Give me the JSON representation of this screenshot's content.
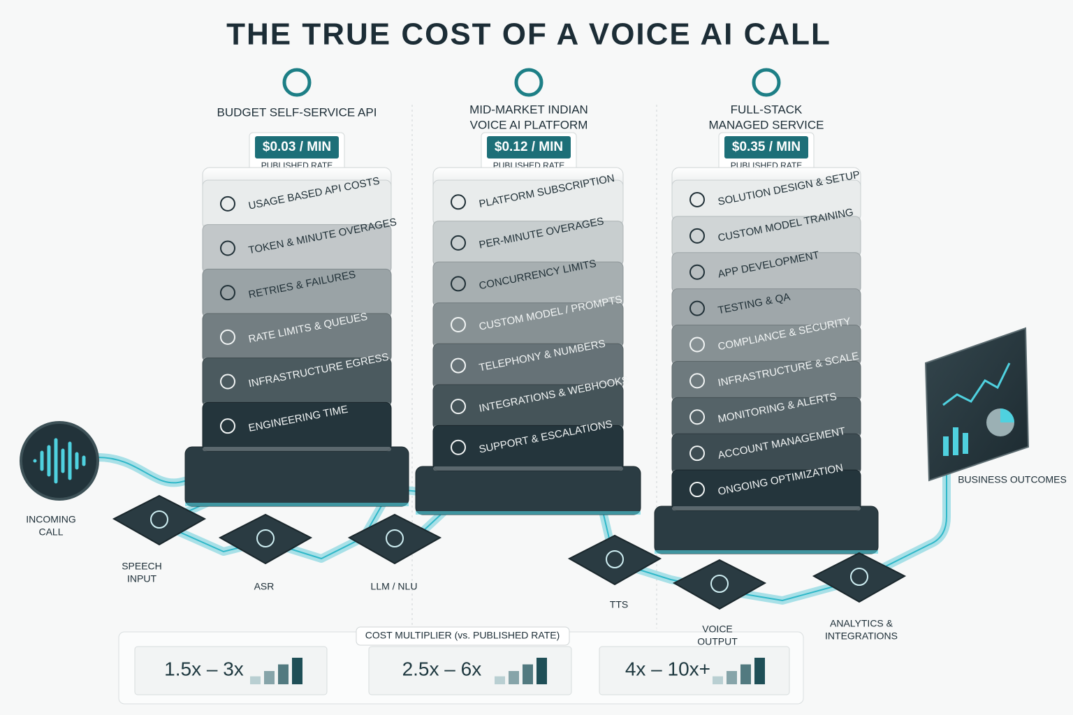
{
  "title": "THE TRUE COST OF A VOICE AI CALL",
  "columns": [
    {
      "name_lines": [
        "BUDGET SELF-SERVICE API"
      ],
      "price": "$0.03 / MIN",
      "rate_label": "PUBLISHED RATE",
      "layers": [
        "USAGE BASED API COSTS",
        "TOKEN & MINUTE OVERAGES",
        "RETRIES & FAILURES",
        "RATE LIMITS & QUEUES",
        "INFRASTRUCTURE EGRESS",
        "ENGINEERING TIME"
      ]
    },
    {
      "name_lines": [
        "MID-MARKET INDIAN",
        "VOICE AI PLATFORM"
      ],
      "price": "$0.12 / MIN",
      "rate_label": "PUBLISHED RATE",
      "layers": [
        "PLATFORM SUBSCRIPTION",
        "PER-MINUTE OVERAGES",
        "CONCURRENCY LIMITS",
        "CUSTOM MODEL / PROMPTS",
        "TELEPHONY & NUMBERS",
        "INTEGRATIONS & WEBHOOKS",
        "SUPPORT & ESCALATIONS"
      ]
    },
    {
      "name_lines": [
        "FULL-STACK",
        "MANAGED SERVICE"
      ],
      "price": "$0.35 / MIN",
      "rate_label": "PUBLISHED RATE",
      "layers": [
        "SOLUTION DESIGN & SETUP",
        "CUSTOM MODEL TRAINING",
        "APP DEVELOPMENT",
        "TESTING & QA",
        "COMPLIANCE & SECURITY",
        "INFRASTRUCTURE & SCALE",
        "MONITORING & ALERTS",
        "ACCOUNT MANAGEMENT",
        "ONGOING OPTIMIZATION"
      ]
    }
  ],
  "pipeline": [
    {
      "label_lines": [
        "INCOMING",
        "CALL"
      ]
    },
    {
      "label_lines": [
        "SPEECH",
        "INPUT"
      ]
    },
    {
      "label_lines": [
        "ASR"
      ]
    },
    {
      "label_lines": [
        "LLM / NLU"
      ]
    },
    {
      "label_lines": [
        "TTS"
      ]
    },
    {
      "label_lines": [
        "VOICE",
        "OUTPUT"
      ]
    },
    {
      "label_lines": [
        "ANALYTICS &",
        "INTEGRATIONS"
      ]
    },
    {
      "label_lines": [
        "BUSINESS OUTCOMES"
      ]
    }
  ],
  "multiplier": {
    "label": "COST MULTIPLIER (vs. PUBLISHED RATE)",
    "values": [
      "1.5x – 3x",
      "2.5x – 6x",
      "4x – 10x+"
    ]
  }
}
